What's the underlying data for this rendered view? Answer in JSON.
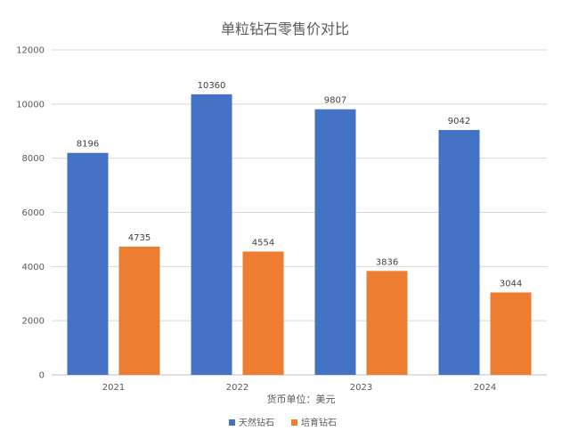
{
  "chart_data": {
    "type": "bar",
    "title": "单粒钻石零售价对比",
    "xlabel": "货币单位：美元",
    "ylabel": "",
    "categories": [
      "2021",
      "2022",
      "2023",
      "2024"
    ],
    "series": [
      {
        "name": "天然钻石",
        "color": "#4472c4",
        "values": [
          8196,
          10360,
          9807,
          9042
        ]
      },
      {
        "name": "培育钻石",
        "color": "#ed7d31",
        "values": [
          4735,
          4554,
          3836,
          3044
        ]
      }
    ],
    "ylim": [
      0,
      12000
    ],
    "yticks": [
      0,
      2000,
      4000,
      6000,
      8000,
      10000,
      12000
    ],
    "grid": true,
    "legend": "bottom"
  }
}
